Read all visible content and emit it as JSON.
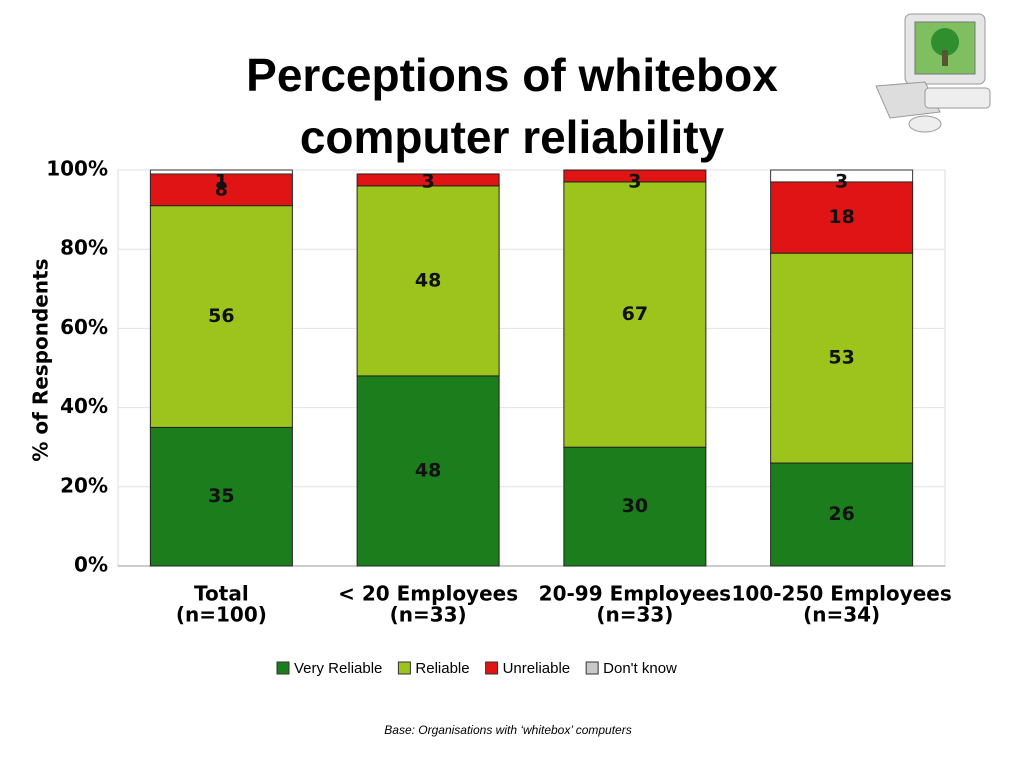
{
  "chart_data": {
    "type": "stacked_bar",
    "title": "Perceptions of whitebox computer reliability",
    "y_label": "% of Respondents",
    "footnote": "Base:  Organisations with ‘whitebox’ computers",
    "categories": [
      [
        "Total",
        "(n=100)"
      ],
      [
        "< 20 Employees",
        "(n=33)"
      ],
      [
        "20-99 Employees",
        "(n=33)"
      ],
      [
        "100-250 Employees",
        "(n=34)"
      ]
    ],
    "series": [
      {
        "name": "Very Reliable",
        "color": "#1c7d1c",
        "values": [
          35,
          48,
          30,
          26
        ]
      },
      {
        "name": "Reliable",
        "color": "#9cc41c",
        "values": [
          56,
          48,
          67,
          53
        ]
      },
      {
        "name": "Unreliable",
        "color": "#e01414",
        "values": [
          8,
          3,
          3,
          18
        ]
      },
      {
        "name": "Don't know",
        "color": "#ffffff",
        "values": [
          1,
          null,
          null,
          3
        ]
      }
    ],
    "ylim": [
      0,
      100
    ],
    "yticks": [
      {
        "value": 0,
        "label": "0%"
      },
      {
        "value": 20,
        "label": "20%"
      },
      {
        "value": 40,
        "label": "40%"
      },
      {
        "value": 60,
        "label": "60%"
      },
      {
        "value": 80,
        "label": "80%"
      },
      {
        "value": 100,
        "label": "100%"
      }
    ],
    "grid": true
  }
}
